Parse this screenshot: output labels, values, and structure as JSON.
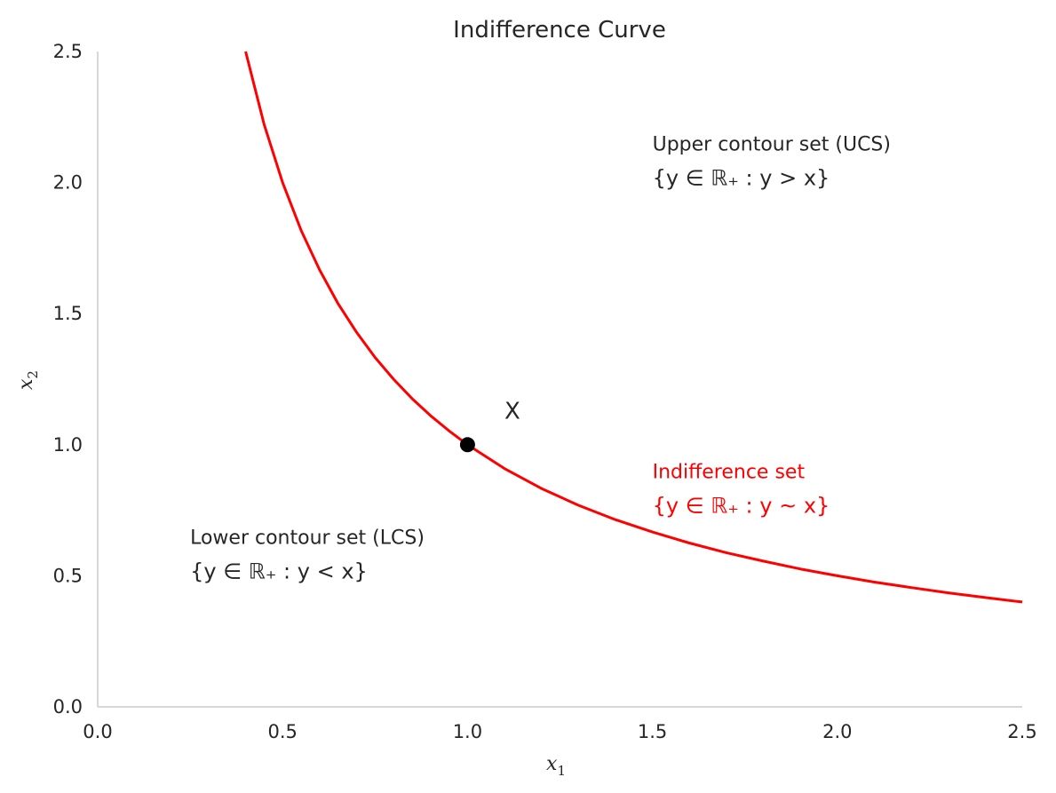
{
  "chart_data": {
    "type": "line",
    "title": "Indifference Curve",
    "xlabel": "x",
    "xlabel_sub": "1",
    "ylabel": "x",
    "ylabel_sub": "2",
    "xlim": [
      0,
      2.5
    ],
    "ylim": [
      0,
      2.5
    ],
    "xticks": [
      0.0,
      0.5,
      1.0,
      1.5,
      2.0,
      2.5
    ],
    "yticks": [
      0.0,
      0.5,
      1.0,
      1.5,
      2.0,
      2.5
    ],
    "xtick_labels": [
      "0.0",
      "0.5",
      "1.0",
      "1.5",
      "2.0",
      "2.5"
    ],
    "ytick_labels": [
      "0.0",
      "0.5",
      "1.0",
      "1.5",
      "2.0",
      "2.5"
    ],
    "grid": false,
    "series": [
      {
        "color": "#ff0000",
        "x": [
          0.4,
          0.45,
          0.5,
          0.55,
          0.6,
          0.65,
          0.7,
          0.75,
          0.8,
          0.85,
          0.9,
          0.95,
          1.0,
          1.1,
          1.2,
          1.3,
          1.4,
          1.5,
          1.6,
          1.7,
          1.8,
          1.9,
          2.0,
          2.1,
          2.2,
          2.3,
          2.4,
          2.5
        ],
        "y": [
          2.5,
          2.222,
          2.0,
          1.818,
          1.667,
          1.538,
          1.429,
          1.333,
          1.25,
          1.176,
          1.111,
          1.053,
          1.0,
          0.909,
          0.833,
          0.769,
          0.714,
          0.667,
          0.625,
          0.588,
          0.556,
          0.526,
          0.5,
          0.476,
          0.455,
          0.435,
          0.417,
          0.4
        ]
      }
    ],
    "points": [
      {
        "label": "X",
        "x": 1.0,
        "y": 1.0,
        "color": "#000000"
      }
    ],
    "annotations": [
      {
        "line1": "Upper contour set (UCS)",
        "line2": "{y ∈ ℝ₊ : y > x}",
        "x": 1.5,
        "y": 2.0,
        "color": "#262626"
      },
      {
        "line1": "Indifference set",
        "line2": "{y ∈ ℝ₊ : y ~ x}",
        "x": 1.5,
        "y": 0.75,
        "color": "#ff0000"
      },
      {
        "line1": "Lower contour set (LCS)",
        "line2": "{y ∈ ℝ₊ : y < x}",
        "x": 0.25,
        "y": 0.5,
        "color": "#262626"
      }
    ]
  }
}
